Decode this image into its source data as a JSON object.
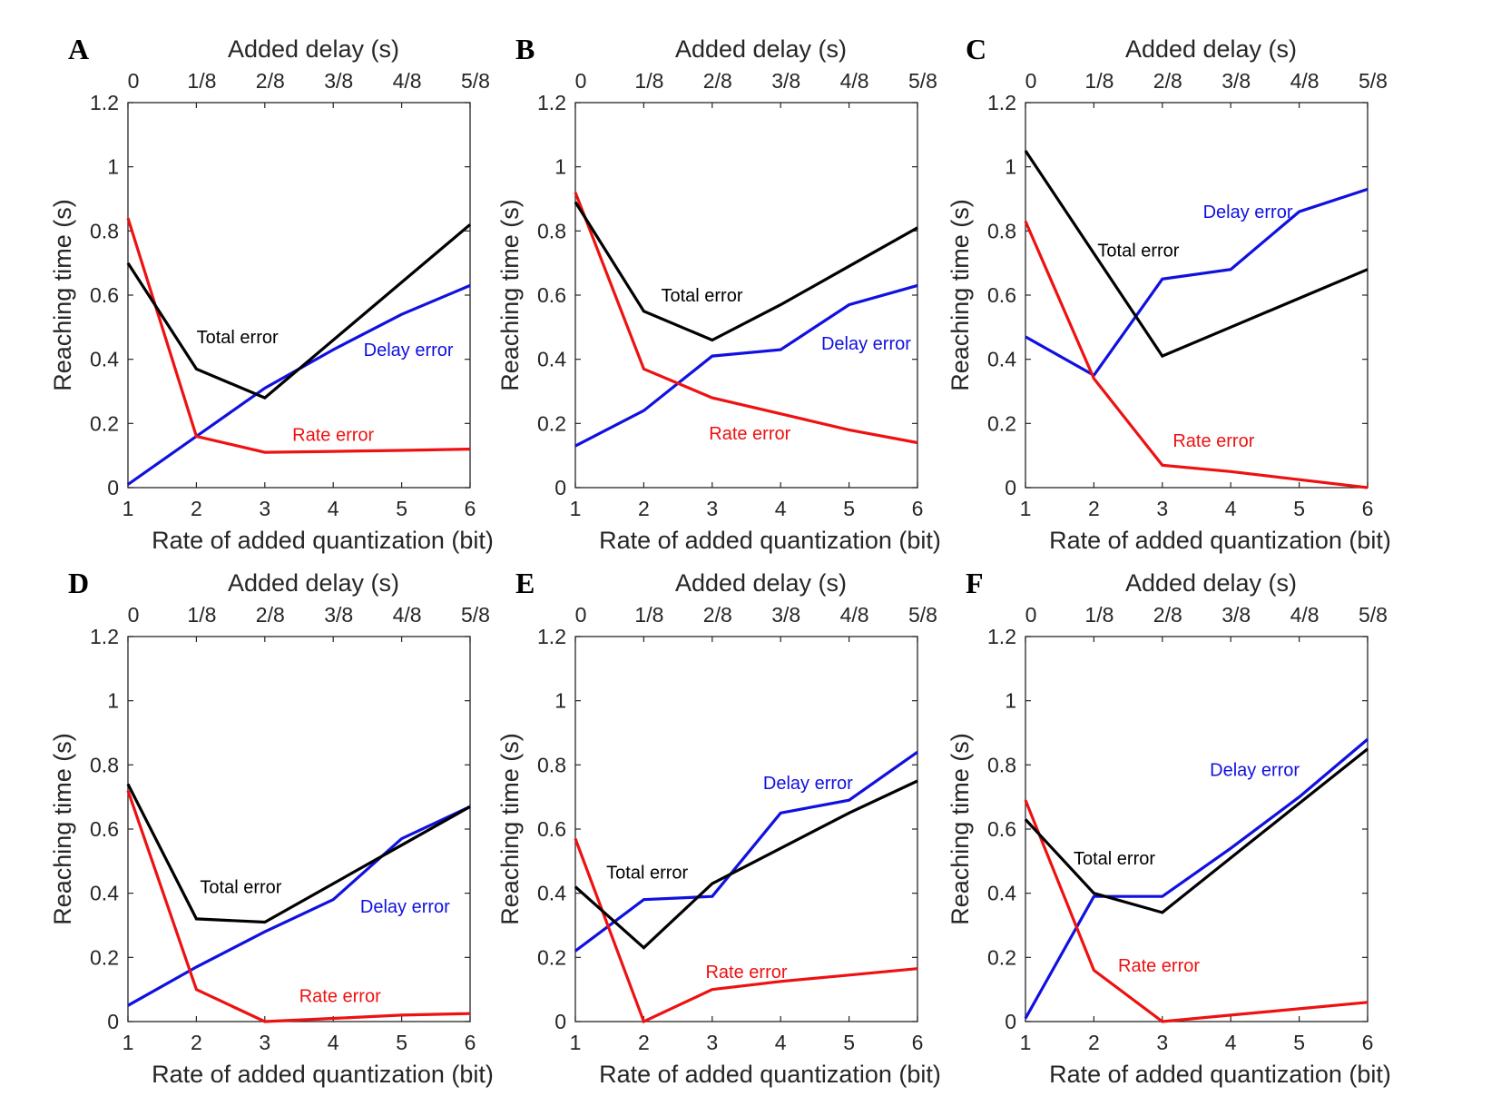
{
  "colors": {
    "total": "#000000",
    "delay": "#1010e0",
    "rate": "#ee1111",
    "axis": "#262626"
  },
  "chart_data": [
    {
      "panel": "A",
      "type": "line",
      "xlabel": "Rate of added quantization (bit)",
      "x2label": "Added delay (s)",
      "ylabel": "Reaching time (s)",
      "x": [
        1,
        2,
        3,
        4,
        5,
        6
      ],
      "xticks": [
        "1",
        "2",
        "3",
        "4",
        "5",
        "6"
      ],
      "x2ticks": [
        "0",
        "1/8",
        "2/8",
        "3/8",
        "4/8",
        "5/8"
      ],
      "yticks": [
        "0",
        "0.2",
        "0.4",
        "0.6",
        "0.8",
        "1",
        "1.2"
      ],
      "ylim": [
        0,
        1.2
      ],
      "series": [
        {
          "name": "Total error",
          "key": "total",
          "values": [
            0.7,
            0.37,
            0.28,
            0.46,
            0.64,
            0.82
          ]
        },
        {
          "name": "Delay error",
          "key": "delay",
          "values": [
            0.01,
            0.16,
            0.31,
            0.43,
            0.54,
            0.63
          ]
        },
        {
          "name": "Rate error",
          "key": "rate",
          "values": [
            0.84,
            0.16,
            0.11,
            0.113,
            0.116,
            0.12
          ]
        }
      ],
      "annotations": [
        {
          "text": "Total error",
          "key": "total",
          "x": 2.6,
          "y": 0.47
        },
        {
          "text": "Delay error",
          "key": "delay",
          "x": 5.1,
          "y": 0.43
        },
        {
          "text": "Rate error",
          "key": "rate",
          "x": 4.0,
          "y": 0.165
        }
      ]
    },
    {
      "panel": "B",
      "type": "line",
      "xlabel": "Rate of added quantization (bit)",
      "x2label": "Added delay (s)",
      "ylabel": "Reaching time (s)",
      "x": [
        1,
        2,
        3,
        4,
        5,
        6
      ],
      "xticks": [
        "1",
        "2",
        "3",
        "4",
        "5",
        "6"
      ],
      "x2ticks": [
        "0",
        "1/8",
        "2/8",
        "3/8",
        "4/8",
        "5/8"
      ],
      "yticks": [
        "0",
        "0.2",
        "0.4",
        "0.6",
        "0.8",
        "1",
        "1.2"
      ],
      "ylim": [
        0,
        1.2
      ],
      "series": [
        {
          "name": "Total error",
          "key": "total",
          "values": [
            0.89,
            0.55,
            0.46,
            0.57,
            0.69,
            0.81
          ]
        },
        {
          "name": "Delay error",
          "key": "delay",
          "values": [
            0.13,
            0.24,
            0.41,
            0.43,
            0.57,
            0.63
          ]
        },
        {
          "name": "Rate error",
          "key": "rate",
          "values": [
            0.92,
            0.37,
            0.28,
            0.23,
            0.18,
            0.14
          ]
        }
      ],
      "annotations": [
        {
          "text": "Total error",
          "key": "total",
          "x": 2.85,
          "y": 0.6
        },
        {
          "text": "Delay error",
          "key": "delay",
          "x": 5.25,
          "y": 0.45
        },
        {
          "text": "Rate error",
          "key": "rate",
          "x": 3.55,
          "y": 0.17
        }
      ]
    },
    {
      "panel": "C",
      "type": "line",
      "xlabel": "Rate of added quantization (bit)",
      "x2label": "Added delay (s)",
      "ylabel": "Reaching time (s)",
      "x": [
        1,
        2,
        3,
        4,
        5,
        6
      ],
      "xticks": [
        "1",
        "2",
        "3",
        "4",
        "5",
        "6"
      ],
      "x2ticks": [
        "0",
        "1/8",
        "2/8",
        "3/8",
        "4/8",
        "5/8"
      ],
      "yticks": [
        "0",
        "0.2",
        "0.4",
        "0.6",
        "0.8",
        "1",
        "1.2"
      ],
      "ylim": [
        0,
        1.2
      ],
      "series": [
        {
          "name": "Total error",
          "key": "total",
          "values": [
            1.05,
            0.73,
            0.41,
            0.5,
            0.59,
            0.68
          ]
        },
        {
          "name": "Delay error",
          "key": "delay",
          "values": [
            0.47,
            0.35,
            0.65,
            0.68,
            0.86,
            0.93
          ]
        },
        {
          "name": "Rate error",
          "key": "rate",
          "values": [
            0.83,
            0.34,
            0.07,
            0.05,
            0.025,
            0.0
          ]
        }
      ],
      "annotations": [
        {
          "text": "Total error",
          "key": "total",
          "x": 2.65,
          "y": 0.74
        },
        {
          "text": "Delay error",
          "key": "delay",
          "x": 4.25,
          "y": 0.86
        },
        {
          "text": "Rate error",
          "key": "rate",
          "x": 3.75,
          "y": 0.147
        }
      ]
    },
    {
      "panel": "D",
      "type": "line",
      "xlabel": "Rate of added quantization (bit)",
      "x2label": "Added delay (s)",
      "ylabel": "Reaching time (s)",
      "x": [
        1,
        2,
        3,
        4,
        5,
        6
      ],
      "xticks": [
        "1",
        "2",
        "3",
        "4",
        "5",
        "6"
      ],
      "x2ticks": [
        "0",
        "1/8",
        "2/8",
        "3/8",
        "4/8",
        "5/8"
      ],
      "yticks": [
        "0",
        "0.2",
        "0.4",
        "0.6",
        "0.8",
        "1",
        "1.2"
      ],
      "ylim": [
        0,
        1.2
      ],
      "series": [
        {
          "name": "Total error",
          "key": "total",
          "values": [
            0.74,
            0.32,
            0.31,
            0.43,
            0.55,
            0.67
          ]
        },
        {
          "name": "Delay error",
          "key": "delay",
          "values": [
            0.05,
            0.17,
            0.28,
            0.38,
            0.57,
            0.67
          ]
        },
        {
          "name": "Rate error",
          "key": "rate",
          "values": [
            0.72,
            0.1,
            0.0,
            0.01,
            0.02,
            0.025
          ]
        }
      ],
      "annotations": [
        {
          "text": "Total error",
          "key": "total",
          "x": 2.65,
          "y": 0.42
        },
        {
          "text": "Delay error",
          "key": "delay",
          "x": 5.05,
          "y": 0.36
        },
        {
          "text": "Rate error",
          "key": "rate",
          "x": 4.1,
          "y": 0.08
        }
      ]
    },
    {
      "panel": "E",
      "type": "line",
      "xlabel": "Rate of added quantization (bit)",
      "x2label": "Added delay (s)",
      "ylabel": "Reaching time (s)",
      "x": [
        1,
        2,
        3,
        4,
        5,
        6
      ],
      "xticks": [
        "1",
        "2",
        "3",
        "4",
        "5",
        "6"
      ],
      "x2ticks": [
        "0",
        "1/8",
        "2/8",
        "3/8",
        "4/8",
        "5/8"
      ],
      "yticks": [
        "0",
        "0.2",
        "0.4",
        "0.6",
        "0.8",
        "1",
        "1.2"
      ],
      "ylim": [
        0,
        1.2
      ],
      "series": [
        {
          "name": "Total error",
          "key": "total",
          "values": [
            0.42,
            0.23,
            0.43,
            0.54,
            0.65,
            0.75
          ]
        },
        {
          "name": "Delay error",
          "key": "delay",
          "values": [
            0.22,
            0.38,
            0.39,
            0.65,
            0.69,
            0.84
          ]
        },
        {
          "name": "Rate error",
          "key": "rate",
          "values": [
            0.57,
            0.0,
            0.1,
            0.125,
            0.145,
            0.165
          ]
        }
      ],
      "annotations": [
        {
          "text": "Total error",
          "key": "total",
          "x": 2.05,
          "y": 0.465
        },
        {
          "text": "Delay error",
          "key": "delay",
          "x": 4.4,
          "y": 0.745
        },
        {
          "text": "Rate error",
          "key": "rate",
          "x": 3.5,
          "y": 0.155
        }
      ]
    },
    {
      "panel": "F",
      "type": "line",
      "xlabel": "Rate of added quantization (bit)",
      "x2label": "Added delay (s)",
      "ylabel": "Reaching time (s)",
      "x": [
        1,
        2,
        3,
        4,
        5,
        6
      ],
      "xticks": [
        "1",
        "2",
        "3",
        "4",
        "5",
        "6"
      ],
      "x2ticks": [
        "0",
        "1/8",
        "2/8",
        "3/8",
        "4/8",
        "5/8"
      ],
      "yticks": [
        "0",
        "0.2",
        "0.4",
        "0.6",
        "0.8",
        "1",
        "1.2"
      ],
      "ylim": [
        0,
        1.2
      ],
      "series": [
        {
          "name": "Total error",
          "key": "total",
          "values": [
            0.63,
            0.4,
            0.34,
            0.51,
            0.68,
            0.85
          ]
        },
        {
          "name": "Delay error",
          "key": "delay",
          "values": [
            0.01,
            0.39,
            0.39,
            0.54,
            0.7,
            0.88
          ]
        },
        {
          "name": "Rate error",
          "key": "rate",
          "values": [
            0.69,
            0.16,
            0.0,
            0.02,
            0.04,
            0.06
          ]
        }
      ],
      "annotations": [
        {
          "text": "Total error",
          "key": "total",
          "x": 2.3,
          "y": 0.51
        },
        {
          "text": "Delay error",
          "key": "delay",
          "x": 4.35,
          "y": 0.785
        },
        {
          "text": "Rate error",
          "key": "rate",
          "x": 2.95,
          "y": 0.175
        }
      ]
    }
  ]
}
